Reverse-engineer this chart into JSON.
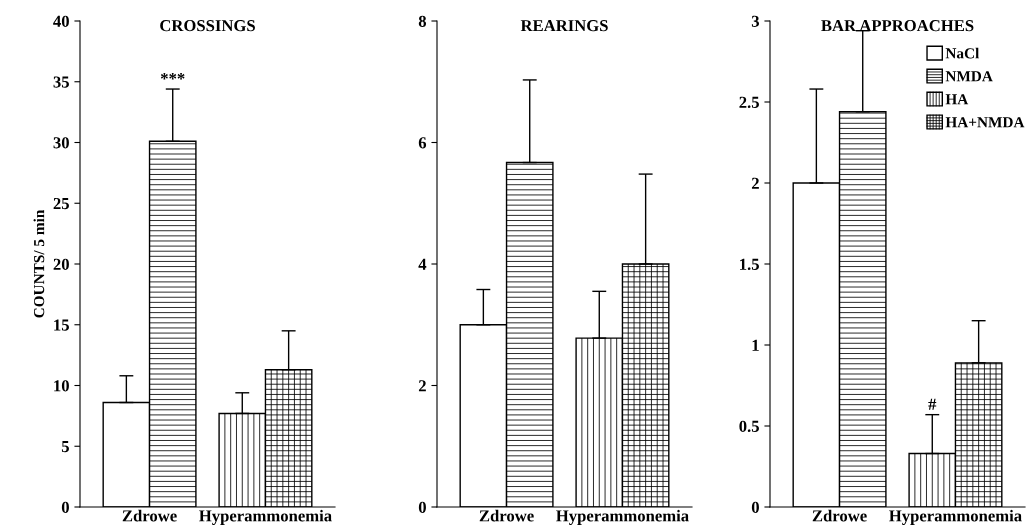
{
  "chart_data": [
    {
      "type": "bar",
      "title": "CROSSINGS",
      "ylabel": "COUNTS/ 5 min",
      "categories": [
        "Zdrowe",
        "Hyperammonemia"
      ],
      "ylim": [
        0,
        40
      ],
      "yticks": [
        0,
        5,
        10,
        15,
        20,
        25,
        30,
        35,
        40
      ],
      "grid": false,
      "legend": false,
      "series": [
        {
          "color": "#ffffff",
          "values": [
            8.6,
            null
          ],
          "errors": [
            [
              8.6,
              10.8
            ],
            null
          ]
        },
        {
          "color": "#ffffff",
          "values": [
            30.1,
            null
          ],
          "errors": [
            [
              30.1,
              34.4
            ],
            null
          ]
        },
        {
          "color": "#ffffff",
          "values": [
            null,
            7.7
          ],
          "errors": [
            null,
            [
              7.7,
              9.4
            ]
          ]
        },
        {
          "color": "#ffffff",
          "values": [
            null,
            11.3
          ],
          "errors": [
            null,
            [
              11.3,
              14.5
            ]
          ]
        }
      ],
      "annotations": [
        "***"
      ]
    },
    {
      "type": "bar",
      "title": "REARINGS",
      "categories": [
        "Zdrowe",
        "Hyperammonemia"
      ],
      "ylim": [
        0,
        8
      ],
      "yticks": [
        0,
        2,
        4,
        6,
        8
      ],
      "grid": false,
      "legend": false,
      "series": [
        {
          "color": "#ffffff",
          "values": [
            3.0,
            null
          ],
          "errors": [
            [
              3.0,
              3.58
            ],
            null
          ]
        },
        {
          "color": "#ffffff",
          "values": [
            5.67,
            null
          ],
          "errors": [
            [
              5.67,
              7.03
            ],
            null
          ]
        },
        {
          "color": "#ffffff",
          "values": [
            null,
            2.78
          ],
          "errors": [
            null,
            [
              2.78,
              3.55
            ]
          ]
        },
        {
          "color": "#ffffff",
          "values": [
            null,
            4.0
          ],
          "errors": [
            null,
            [
              4.0,
              5.48
            ]
          ]
        }
      ]
    },
    {
      "type": "bar",
      "title": "BAR APPROACHES",
      "categories": [
        "Zdrowe",
        "Hyperammonemia"
      ],
      "ylim": [
        0,
        3
      ],
      "yticks": [
        0,
        0.5,
        1,
        1.5,
        2,
        2.5,
        3
      ],
      "grid": false,
      "legend": "top right",
      "series": [
        {
          "name": "NaCl",
          "color": "#ffffff",
          "values": [
            2.0,
            null
          ],
          "errors": [
            [
              2.0,
              2.58
            ],
            null
          ]
        },
        {
          "name": "NMDA",
          "color": "#ffffff",
          "values": [
            2.44,
            null
          ],
          "errors": [
            [
              2.44,
              2.94
            ],
            null
          ]
        },
        {
          "name": "HA",
          "color": "#ffffff",
          "values": [
            null,
            0.33
          ],
          "errors": [
            null,
            [
              0.33,
              0.57
            ]
          ],
          "value_labels": [
            null,
            "#"
          ]
        },
        {
          "name": "HA+NMDA",
          "color": "#ffffff",
          "values": [
            null,
            0.89
          ],
          "errors": [
            null,
            [
              0.89,
              1.15
            ]
          ]
        }
      ]
    }
  ]
}
